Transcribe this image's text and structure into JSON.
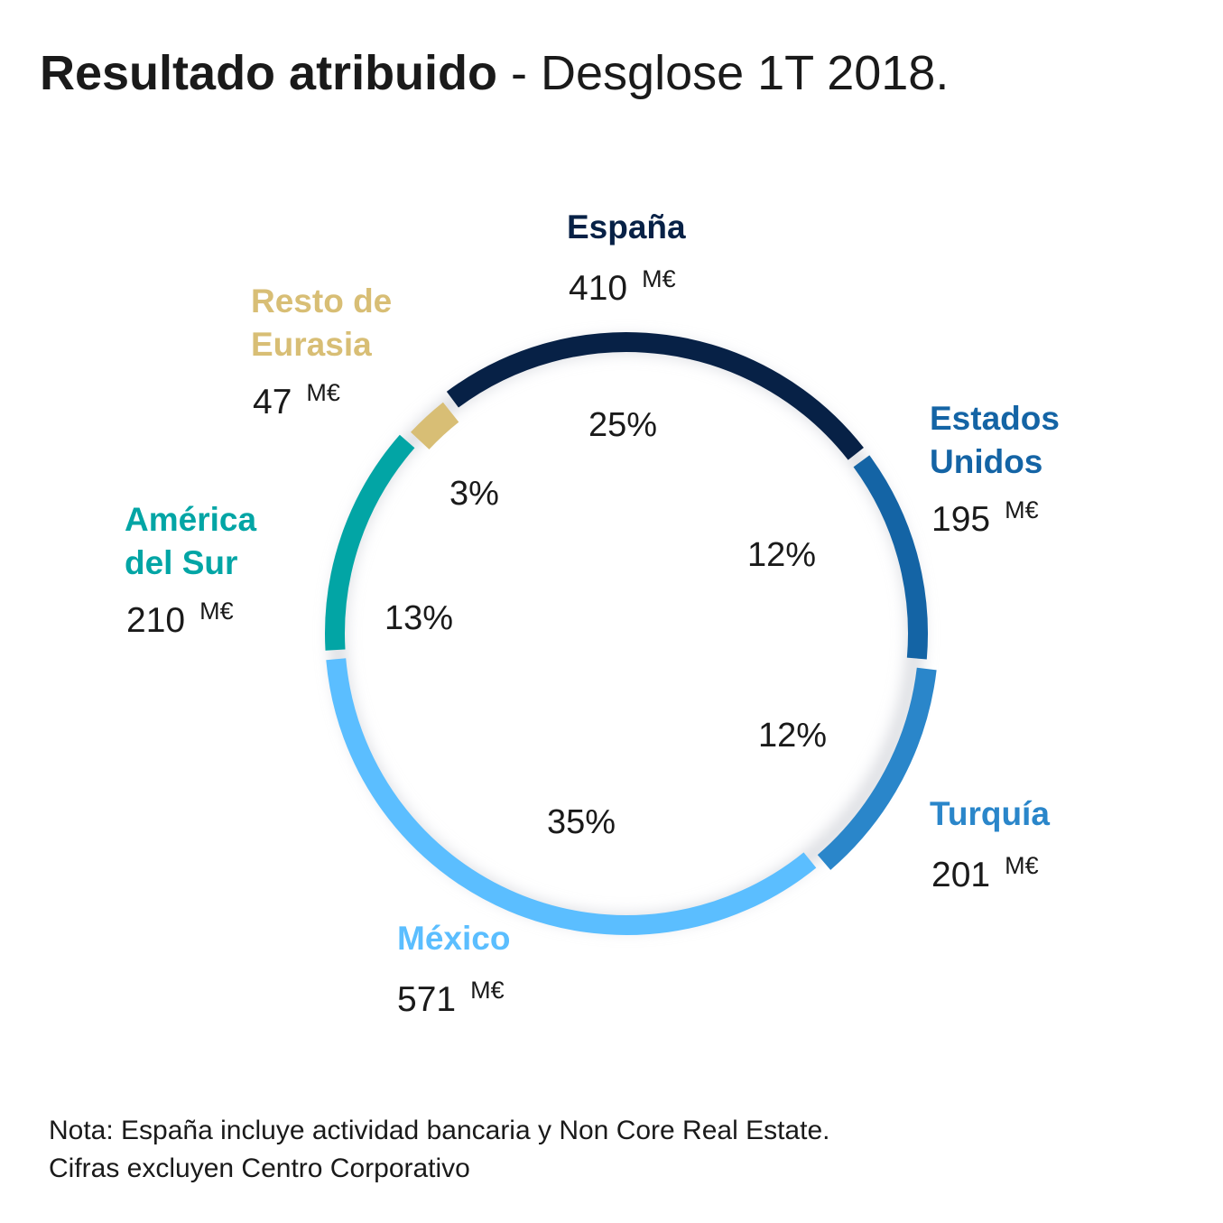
{
  "title": {
    "bold": "Resultado atribuido",
    "rest": "- Desglose 1T 2018."
  },
  "chart_data": {
    "type": "pie",
    "style": "donut",
    "title": "Resultado atribuido - Desglose 1T 2018.",
    "unit": "M€",
    "slices": [
      {
        "name_lines": [
          "España"
        ],
        "value": "410",
        "pct_label": "25%",
        "value_num": 410,
        "percent": 25,
        "color": "#072146"
      },
      {
        "name_lines": [
          "Estados",
          "Unidos"
        ],
        "value": "195",
        "pct_label": "12%",
        "value_num": 195,
        "percent": 12,
        "color": "#1464a5"
      },
      {
        "name_lines": [
          "Turquía"
        ],
        "value": "201",
        "pct_label": "12%",
        "value_num": 201,
        "percent": 12,
        "color": "#2a86ca"
      },
      {
        "name_lines": [
          "México"
        ],
        "value": "571",
        "pct_label": "35%",
        "value_num": 571,
        "percent": 35,
        "color": "#5bbeff"
      },
      {
        "name_lines": [
          "América",
          "del Sur"
        ],
        "value": "210",
        "pct_label": "13%",
        "value_num": 210,
        "percent": 13,
        "color": "#02a5a5"
      },
      {
        "name_lines": [
          "Resto de",
          "Eurasia"
        ],
        "value": "47",
        "pct_label": "3%",
        "value_num": 47,
        "percent": 3,
        "color": "#d8be75"
      }
    ]
  },
  "note": {
    "line1": "Nota: España incluye actividad bancaria y Non Core Real Estate.",
    "line2": "Cifras excluyen Centro Corporativo"
  }
}
